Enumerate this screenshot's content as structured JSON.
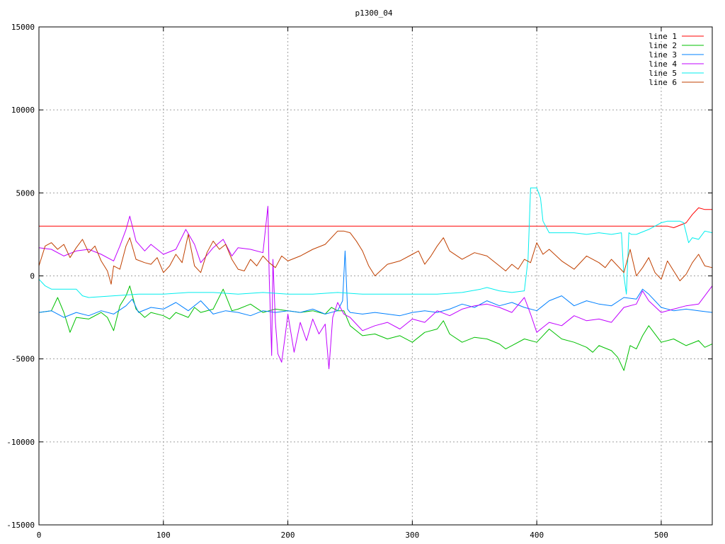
{
  "chart_data": {
    "type": "line",
    "title": "p1300_04",
    "xlabel": "",
    "ylabel": "",
    "xlim": [
      0,
      541
    ],
    "ylim": [
      -15000,
      15000
    ],
    "xticks": [
      0,
      100,
      200,
      300,
      400,
      500
    ],
    "yticks": [
      -15000,
      -10000,
      -5000,
      0,
      5000,
      10000,
      15000
    ],
    "grid": true,
    "legend_position": "top-right",
    "colors": {
      "line 1": "#ff0000",
      "line 2": "#00c000",
      "line 3": "#0080ff",
      "line 4": "#c000ff",
      "line 5": "#00eeee",
      "line 6": "#c04000"
    },
    "series": [
      {
        "name": "line 1",
        "x": [
          0,
          505,
          510,
          520,
          525,
          530,
          535,
          541
        ],
        "values": [
          3000,
          3000,
          2900,
          3200,
          3700,
          4100,
          4000,
          4000
        ]
      },
      {
        "name": "line 2",
        "x": [
          0,
          10,
          15,
          20,
          25,
          30,
          40,
          50,
          55,
          60,
          65,
          70,
          73,
          78,
          85,
          90,
          100,
          105,
          110,
          120,
          125,
          130,
          140,
          148,
          155,
          160,
          170,
          180,
          190,
          200,
          210,
          220,
          230,
          235,
          240,
          245,
          250,
          260,
          270,
          280,
          290,
          300,
          310,
          320,
          325,
          330,
          340,
          350,
          360,
          370,
          375,
          380,
          390,
          400,
          410,
          420,
          430,
          440,
          445,
          450,
          460,
          465,
          470,
          475,
          480,
          485,
          490,
          500,
          510,
          520,
          530,
          535,
          541
        ],
        "values": [
          -2200,
          -2100,
          -1300,
          -2200,
          -3400,
          -2500,
          -2600,
          -2200,
          -2500,
          -3300,
          -1800,
          -1200,
          -600,
          -2000,
          -2500,
          -2200,
          -2400,
          -2600,
          -2200,
          -2500,
          -1900,
          -2200,
          -2000,
          -800,
          -2100,
          -2000,
          -1700,
          -2200,
          -2000,
          -2100,
          -2200,
          -2100,
          -2300,
          -1900,
          -2100,
          -2100,
          -3000,
          -3600,
          -3500,
          -3800,
          -3600,
          -4000,
          -3400,
          -3200,
          -2700,
          -3500,
          -4000,
          -3700,
          -3800,
          -4100,
          -4400,
          -4200,
          -3800,
          -4000,
          -3200,
          -3800,
          -4000,
          -4300,
          -4600,
          -4200,
          -4500,
          -4900,
          -5700,
          -4200,
          -4400,
          -3600,
          -3000,
          -4000,
          -3800,
          -4200,
          -3900,
          -4300,
          -4100
        ]
      },
      {
        "name": "line 3",
        "x": [
          0,
          10,
          20,
          30,
          40,
          50,
          60,
          70,
          75,
          80,
          90,
          100,
          110,
          120,
          130,
          140,
          150,
          160,
          170,
          180,
          190,
          200,
          210,
          220,
          230,
          240,
          244,
          246,
          248,
          250,
          260,
          270,
          280,
          290,
          300,
          310,
          320,
          330,
          340,
          350,
          360,
          370,
          380,
          390,
          400,
          410,
          420,
          430,
          440,
          450,
          460,
          470,
          480,
          485,
          490,
          500,
          510,
          520,
          530,
          541
        ],
        "values": [
          -2200,
          -2100,
          -2500,
          -2200,
          -2400,
          -2100,
          -2300,
          -1800,
          -1400,
          -2200,
          -1900,
          -2000,
          -1600,
          -2100,
          -1500,
          -2300,
          -2100,
          -2200,
          -2400,
          -2100,
          -2200,
          -2100,
          -2200,
          -2000,
          -2300,
          -2100,
          -1500,
          1500,
          -2000,
          -2200,
          -2300,
          -2200,
          -2300,
          -2400,
          -2200,
          -2100,
          -2200,
          -2000,
          -1700,
          -1900,
          -1500,
          -1800,
          -1600,
          -1900,
          -2100,
          -1500,
          -1200,
          -1800,
          -1500,
          -1700,
          -1800,
          -1300,
          -1400,
          -800,
          -1100,
          -1900,
          -2100,
          -2000,
          -2100,
          -2200
        ]
      },
      {
        "name": "line 4",
        "x": [
          0,
          10,
          20,
          30,
          40,
          50,
          60,
          65,
          70,
          73,
          78,
          85,
          90,
          100,
          110,
          118,
          125,
          130,
          140,
          148,
          155,
          160,
          170,
          180,
          184,
          185,
          187,
          188,
          190,
          192,
          195,
          198,
          200,
          205,
          210,
          215,
          220,
          225,
          230,
          233,
          236,
          240,
          245,
          250,
          260,
          270,
          280,
          290,
          300,
          310,
          320,
          330,
          340,
          350,
          360,
          370,
          380,
          390,
          395,
          400,
          405,
          410,
          420,
          430,
          440,
          450,
          460,
          470,
          480,
          485,
          490,
          500,
          510,
          520,
          530,
          536,
          541
        ],
        "values": [
          1700,
          1600,
          1200,
          1500,
          1600,
          1300,
          900,
          1800,
          2800,
          3600,
          2100,
          1500,
          1900,
          1300,
          1600,
          2800,
          1900,
          800,
          1700,
          2200,
          1200,
          1700,
          1600,
          1400,
          4200,
          0,
          -4800,
          1000,
          -2800,
          -4700,
          -5200,
          -3500,
          -2300,
          -4600,
          -2800,
          -3900,
          -2600,
          -3500,
          -2900,
          -5600,
          -2500,
          -1600,
          -2300,
          -2500,
          -3300,
          -3000,
          -2800,
          -3200,
          -2600,
          -2800,
          -2100,
          -2400,
          -2000,
          -1800,
          -1700,
          -1900,
          -2200,
          -1300,
          -2300,
          -3400,
          -3100,
          -2800,
          -3000,
          -2400,
          -2700,
          -2600,
          -2800,
          -1900,
          -1700,
          -900,
          -1500,
          -2200,
          -2000,
          -1800,
          -1700,
          -1100,
          -600
        ]
      },
      {
        "name": "line 5",
        "x": [
          0,
          5,
          10,
          20,
          30,
          35,
          40,
          60,
          80,
          100,
          120,
          140,
          160,
          180,
          200,
          220,
          240,
          260,
          280,
          300,
          320,
          340,
          355,
          360,
          370,
          380,
          390,
          393,
          395,
          400,
          403,
          405,
          410,
          420,
          430,
          440,
          450,
          460,
          468,
          470,
          472,
          474,
          476,
          480,
          490,
          500,
          505,
          515,
          518,
          522,
          525,
          530,
          535,
          541
        ],
        "values": [
          -200,
          -600,
          -800,
          -800,
          -800,
          -1200,
          -1300,
          -1200,
          -1100,
          -1100,
          -1000,
          -1000,
          -1100,
          -1000,
          -1100,
          -1100,
          -1000,
          -1100,
          -1100,
          -1100,
          -1100,
          -1000,
          -800,
          -700,
          -900,
          -1000,
          -900,
          1000,
          5300,
          5300,
          4700,
          3300,
          2600,
          2600,
          2600,
          2500,
          2600,
          2500,
          2600,
          0,
          -1100,
          2600,
          2500,
          2500,
          2800,
          3200,
          3300,
          3300,
          3200,
          2000,
          2300,
          2200,
          2700,
          2600
        ]
      },
      {
        "name": "line 6",
        "x": [
          0,
          5,
          10,
          15,
          20,
          25,
          30,
          35,
          40,
          45,
          50,
          55,
          58,
          60,
          65,
          70,
          73,
          78,
          85,
          90,
          95,
          100,
          105,
          110,
          115,
          120,
          125,
          130,
          135,
          140,
          145,
          150,
          155,
          160,
          165,
          170,
          175,
          180,
          185,
          190,
          195,
          200,
          210,
          220,
          230,
          240,
          245,
          250,
          255,
          260,
          265,
          270,
          280,
          290,
          300,
          305,
          310,
          315,
          320,
          325,
          330,
          340,
          350,
          360,
          370,
          375,
          380,
          385,
          390,
          395,
          400,
          405,
          410,
          420,
          430,
          440,
          450,
          455,
          460,
          470,
          475,
          480,
          485,
          490,
          495,
          500,
          505,
          510,
          515,
          520,
          525,
          530,
          535,
          541
        ],
        "values": [
          600,
          1800,
          2000,
          1600,
          1900,
          1100,
          1700,
          2200,
          1400,
          1800,
          900,
          300,
          -500,
          600,
          400,
          1800,
          2300,
          1000,
          800,
          700,
          1100,
          200,
          600,
          1300,
          800,
          2500,
          600,
          200,
          1400,
          2100,
          1600,
          1900,
          1000,
          400,
          300,
          1000,
          600,
          1200,
          800,
          500,
          1200,
          900,
          1200,
          1600,
          1900,
          2700,
          2700,
          2600,
          2100,
          1500,
          600,
          0,
          700,
          900,
          1300,
          1500,
          700,
          1200,
          1800,
          2300,
          1500,
          1000,
          1400,
          1200,
          600,
          300,
          700,
          400,
          1000,
          800,
          2000,
          1300,
          1600,
          900,
          400,
          1200,
          800,
          500,
          1000,
          200,
          1600,
          0,
          500,
          1100,
          200,
          -200,
          900,
          300,
          -300,
          100,
          800,
          1300,
          600,
          500
        ]
      }
    ]
  }
}
